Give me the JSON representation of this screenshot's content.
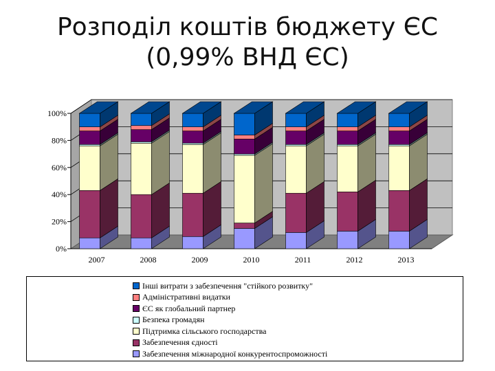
{
  "title": {
    "line1": "Розподіл коштів бюджету ЄС",
    "line2": "(0,99% ВНД ЄС)"
  },
  "chart_data": {
    "type": "bar",
    "stacked": true,
    "percent": true,
    "three_d": true,
    "categories": [
      "2007",
      "2008",
      "2009",
      "2010",
      "2011",
      "2012",
      "2013"
    ],
    "ylim": [
      0,
      100
    ],
    "yticks": [
      "0%",
      "20%",
      "40%",
      "60%",
      "80%",
      "100%"
    ],
    "grid": true,
    "legend_position": "bottom",
    "series": [
      {
        "name": "Забезпечення міжнародної конкурентоспроможності",
        "color": "#9999ff",
        "values": [
          8,
          8,
          9,
          15,
          12,
          13,
          13
        ]
      },
      {
        "name": "Забезпечення єдності",
        "color": "#993366",
        "values": [
          35,
          32,
          32,
          4,
          29,
          29,
          30
        ]
      },
      {
        "name": "Підтримка сільського господарства",
        "color": "#ffffcc",
        "values": [
          33,
          38,
          36,
          50,
          35,
          34,
          33
        ]
      },
      {
        "name": "Безпека громадян",
        "color": "#ccffff",
        "values": [
          1,
          1,
          1,
          1,
          1,
          1,
          1
        ]
      },
      {
        "name": "ЄС як глобальний партнер",
        "color": "#660066",
        "values": [
          10,
          9,
          9,
          11,
          10,
          10,
          10
        ]
      },
      {
        "name": "Адміністративні видатки",
        "color": "#ff8080",
        "values": [
          3,
          3,
          3,
          3,
          3,
          3,
          3
        ]
      },
      {
        "name": "Інші витрати з забезпечення \"стійкого розвитку\"",
        "color": "#0066cc",
        "values": [
          10,
          9,
          10,
          16,
          10,
          10,
          10
        ]
      }
    ]
  }
}
